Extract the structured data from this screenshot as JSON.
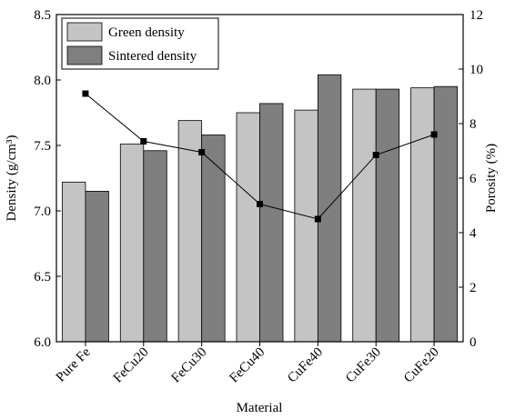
{
  "chart_data": {
    "type": "bar",
    "title": "",
    "categories": [
      "Pure Fe",
      "FeCu20",
      "FeCu30",
      "FeCu40",
      "CuFe40",
      "CuFe30",
      "CuFe20"
    ],
    "xlabel": "Material",
    "ylabel": "Density (g/cm³)",
    "ylim": [
      6.0,
      8.5
    ],
    "yticks": [
      "6.0",
      "6.5",
      "7.0",
      "7.5",
      "8.0",
      "8.5"
    ],
    "y2label": "Porosity (%)",
    "y2lim": [
      0,
      12
    ],
    "y2ticks": [
      "0",
      "2",
      "4",
      "6",
      "8",
      "10",
      "12"
    ],
    "grid": false,
    "legend_position": "top-left",
    "series": [
      {
        "name": "Green density",
        "kind": "bar",
        "axis": "left",
        "color": "#c4c4c4",
        "values": [
          7.22,
          7.51,
          7.69,
          7.75,
          7.77,
          7.93,
          7.94
        ]
      },
      {
        "name": "Sintered density",
        "kind": "bar",
        "axis": "left",
        "color": "#7f7f7f",
        "values": [
          7.15,
          7.46,
          7.58,
          7.82,
          8.04,
          7.93,
          7.95
        ]
      },
      {
        "name": "",
        "kind": "line",
        "axis": "right",
        "color": "#000000",
        "marker": "square",
        "values": [
          9.1,
          7.35,
          6.95,
          5.05,
          4.5,
          6.85,
          7.6
        ]
      }
    ]
  }
}
